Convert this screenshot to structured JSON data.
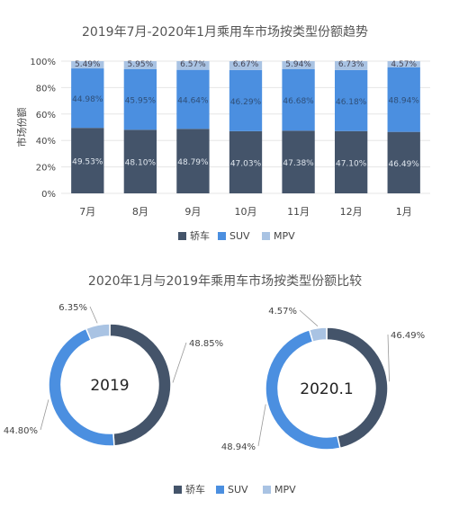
{
  "colors": {
    "sedan": "#44546a",
    "suv": "#4b8fe0",
    "mpv": "#a9c3e3",
    "grid": "#e6e6e6",
    "text": "#444444"
  },
  "chart_data": [
    {
      "type": "bar",
      "stacked": true,
      "title": "2019年7月-2020年1月乘用车市场按类型份额趋势",
      "ylabel": "市场份额",
      "xlabel": "",
      "ylim": [
        0,
        100
      ],
      "yticks": [
        "0%",
        "20%",
        "40%",
        "60%",
        "80%",
        "100%"
      ],
      "categories": [
        "7月",
        "8月",
        "9月",
        "10月",
        "11月",
        "12月",
        "1月"
      ],
      "series": [
        {
          "name": "轿车",
          "values": [
            49.53,
            48.1,
            48.79,
            47.03,
            47.38,
            47.1,
            46.49
          ],
          "labels": [
            "49.53%",
            "48.10%",
            "48.79%",
            "47.03%",
            "47.38%",
            "47.10%",
            "46.49%"
          ]
        },
        {
          "name": "SUV",
          "values": [
            44.98,
            45.95,
            44.64,
            46.29,
            46.68,
            46.18,
            48.94
          ],
          "labels": [
            "44.98%",
            "45.95%",
            "44.64%",
            "46.29%",
            "46.68%",
            "46.18%",
            "48.94%"
          ]
        },
        {
          "name": "MPV",
          "values": [
            5.49,
            5.95,
            6.57,
            6.67,
            5.94,
            6.73,
            4.57
          ],
          "labels": [
            "5.49%",
            "5.95%",
            "6.57%",
            "6.67%",
            "5.94%",
            "6.73%",
            "4.57%"
          ]
        }
      ],
      "legend": [
        "轿车",
        "SUV",
        "MPV"
      ],
      "legend_position": "bottom",
      "grid": true
    },
    {
      "type": "pie",
      "donut": true,
      "title": "2020年1月与2019年乘用车市场按类型份额比较",
      "charts": [
        {
          "center_label": "2019",
          "slices": [
            {
              "name": "轿车",
              "value": 48.85,
              "label": "48.85%"
            },
            {
              "name": "SUV",
              "value": 44.8,
              "label": "44.80%"
            },
            {
              "name": "MPV",
              "value": 6.35,
              "label": "6.35%"
            }
          ]
        },
        {
          "center_label": "2020.1",
          "slices": [
            {
              "name": "轿车",
              "value": 46.49,
              "label": "46.49%"
            },
            {
              "name": "SUV",
              "value": 48.94,
              "label": "48.94%"
            },
            {
              "name": "MPV",
              "value": 4.57,
              "label": "4.57%"
            }
          ]
        }
      ],
      "legend": [
        "轿车",
        "SUV",
        "MPV"
      ],
      "legend_position": "bottom"
    }
  ]
}
